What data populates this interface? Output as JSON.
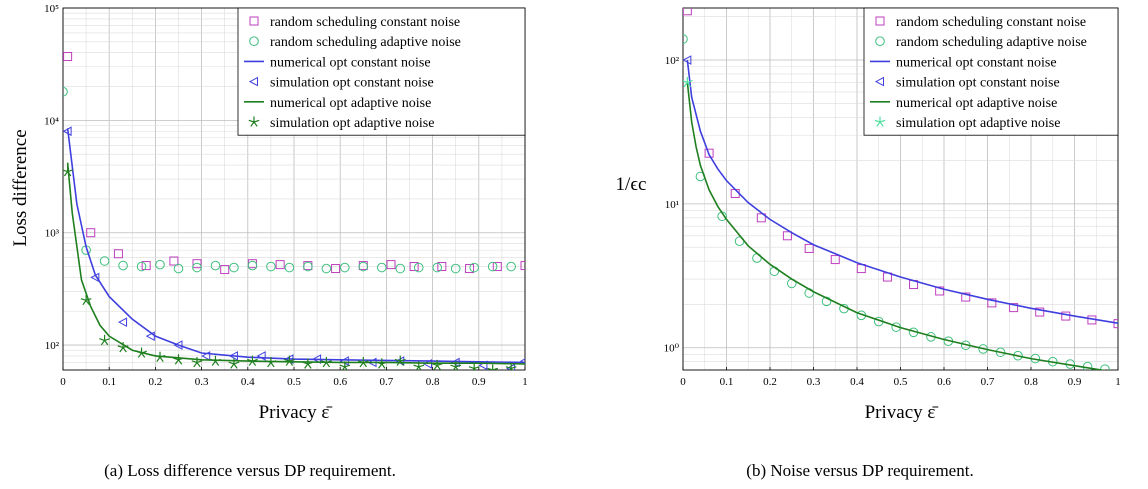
{
  "captions": {
    "a": "(a) Loss difference versus DP requirement.",
    "b": "(b) Noise versus DP requirement."
  },
  "colors": {
    "random_constant": "#bf3fbf",
    "random_adaptive": "#3fbf7f",
    "numerical_constant": "#3f3fdf",
    "simulation_constant": "#3f3fdf",
    "numerical_adaptive": "#1f7f1f",
    "simulation_adaptive": "#1f7f1f",
    "simulation_adaptive_b": "#50e0a0"
  },
  "chart_data": [
    {
      "type": "line",
      "id": "a",
      "xlabel": "Privacy ε̄",
      "ylabel": "Loss difference",
      "xlim": [
        0,
        1
      ],
      "ylim": [
        60,
        100000
      ],
      "yscale": "log",
      "grid": true,
      "legend_position": "top-right",
      "x_ticks": [
        "0",
        "0.1",
        "0.2",
        "0.3",
        "0.4",
        "0.5",
        "0.6",
        "0.7",
        "0.8",
        "0.9",
        "1"
      ],
      "y_ticks": [
        {
          "value": 100,
          "label": "10²"
        },
        {
          "value": 1000,
          "label": "10³"
        },
        {
          "value": 10000,
          "label": "10⁴"
        },
        {
          "value": 100000,
          "label": "10⁵"
        }
      ],
      "series": [
        {
          "name": "random scheduling constant noise",
          "style": "square",
          "color_key": "random_constant",
          "x": [
            0.01,
            0.06,
            0.12,
            0.18,
            0.24,
            0.29,
            0.35,
            0.41,
            0.47,
            0.53,
            0.59,
            0.65,
            0.71,
            0.76,
            0.82,
            0.88,
            0.94,
            1.0
          ],
          "y": [
            37000,
            1000,
            650,
            510,
            560,
            530,
            470,
            530,
            520,
            510,
            480,
            510,
            520,
            500,
            500,
            480,
            500,
            510
          ]
        },
        {
          "name": "random scheduling adaptive noise",
          "style": "circle",
          "color_key": "random_adaptive",
          "x": [
            0.0,
            0.05,
            0.09,
            0.13,
            0.17,
            0.21,
            0.25,
            0.29,
            0.33,
            0.37,
            0.41,
            0.45,
            0.49,
            0.53,
            0.57,
            0.61,
            0.65,
            0.69,
            0.73,
            0.77,
            0.81,
            0.85,
            0.89,
            0.93,
            0.97
          ],
          "y": [
            18000,
            700,
            560,
            510,
            500,
            520,
            480,
            490,
            510,
            490,
            510,
            500,
            490,
            500,
            480,
            490,
            500,
            490,
            480,
            490,
            490,
            480,
            490,
            500,
            500
          ]
        },
        {
          "name": "numerical opt constant noise",
          "style": "line",
          "color_key": "numerical_constant",
          "x": [
            0.01,
            0.03,
            0.05,
            0.07,
            0.1,
            0.15,
            0.2,
            0.25,
            0.3,
            0.4,
            0.5,
            0.6,
            0.7,
            0.8,
            0.9,
            1.0
          ],
          "y": [
            8500,
            1800,
            750,
            420,
            270,
            170,
            120,
            100,
            85,
            78,
            75,
            74,
            73,
            72,
            71,
            70
          ]
        },
        {
          "name": "simulation opt constant noise",
          "style": "triangle",
          "color_key": "simulation_constant",
          "x": [
            0.01,
            0.07,
            0.13,
            0.19,
            0.25,
            0.31,
            0.37,
            0.43,
            0.49,
            0.55,
            0.61,
            0.67,
            0.73,
            0.79,
            0.85,
            0.91,
            0.97,
            1.0
          ],
          "y": [
            8000,
            400,
            160,
            120,
            100,
            80,
            80,
            80,
            75,
            75,
            72,
            70,
            72,
            68,
            70,
            66,
            62,
            72
          ]
        },
        {
          "name": "numerical opt adaptive noise",
          "style": "line",
          "color_key": "numerical_adaptive",
          "x": [
            0.01,
            0.02,
            0.04,
            0.06,
            0.08,
            0.1,
            0.15,
            0.2,
            0.3,
            0.4,
            0.5,
            0.6,
            0.7,
            0.8,
            0.9,
            1.0
          ],
          "y": [
            4200,
            1500,
            380,
            220,
            150,
            120,
            90,
            80,
            74,
            72,
            71,
            70,
            70,
            69,
            69,
            68
          ]
        },
        {
          "name": "simulation opt adaptive noise",
          "style": "star",
          "color_key": "simulation_adaptive",
          "x": [
            0.01,
            0.05,
            0.09,
            0.13,
            0.17,
            0.21,
            0.25,
            0.29,
            0.33,
            0.37,
            0.41,
            0.45,
            0.49,
            0.53,
            0.57,
            0.61,
            0.65,
            0.69,
            0.73,
            0.77,
            0.81,
            0.85,
            0.89,
            0.93,
            0.97
          ],
          "y": [
            3500,
            250,
            110,
            95,
            85,
            78,
            74,
            70,
            72,
            68,
            72,
            70,
            72,
            68,
            70,
            64,
            70,
            68,
            72,
            64,
            66,
            64,
            62,
            60,
            62
          ]
        }
      ]
    },
    {
      "type": "line",
      "id": "b",
      "xlabel": "Privacy ε̄",
      "ylabel": "1/ϵc",
      "xlim": [
        0,
        1
      ],
      "ylim": [
        0.7,
        230
      ],
      "yscale": "log",
      "grid": true,
      "legend_position": "top-right",
      "x_ticks": [
        "0",
        "0.1",
        "0.2",
        "0.3",
        "0.4",
        "0.5",
        "0.6",
        "0.7",
        "0.8",
        "0.9",
        "1"
      ],
      "y_ticks": [
        {
          "value": 1,
          "label": "10⁰"
        },
        {
          "value": 10,
          "label": "10¹"
        },
        {
          "value": 100,
          "label": "10²"
        }
      ],
      "series": [
        {
          "name": "random scheduling constant noise",
          "style": "square",
          "color_key": "random_constant",
          "x": [
            0.01,
            0.06,
            0.12,
            0.18,
            0.24,
            0.29,
            0.35,
            0.41,
            0.47,
            0.53,
            0.59,
            0.65,
            0.71,
            0.76,
            0.82,
            0.88,
            0.94,
            1.0
          ],
          "y": [
            220,
            22.5,
            11.8,
            8.0,
            6.0,
            4.9,
            4.1,
            3.55,
            3.1,
            2.75,
            2.48,
            2.25,
            2.05,
            1.9,
            1.77,
            1.66,
            1.56,
            1.47
          ]
        },
        {
          "name": "random scheduling adaptive noise",
          "style": "circle",
          "color_key": "random_adaptive",
          "x": [
            0.0,
            0.04,
            0.09,
            0.13,
            0.17,
            0.21,
            0.25,
            0.29,
            0.33,
            0.37,
            0.41,
            0.45,
            0.49,
            0.53,
            0.57,
            0.61,
            0.65,
            0.69,
            0.73,
            0.77,
            0.81,
            0.85,
            0.89,
            0.93,
            0.97
          ],
          "y": [
            140,
            15.5,
            8.2,
            5.5,
            4.2,
            3.4,
            2.8,
            2.4,
            2.1,
            1.87,
            1.68,
            1.52,
            1.39,
            1.28,
            1.19,
            1.11,
            1.04,
            0.98,
            0.93,
            0.88,
            0.84,
            0.8,
            0.77,
            0.74,
            0.71
          ]
        },
        {
          "name": "numerical opt constant noise",
          "style": "line",
          "color_key": "numerical_constant",
          "x": [
            0.01,
            0.02,
            0.04,
            0.06,
            0.08,
            0.1,
            0.15,
            0.2,
            0.25,
            0.3,
            0.4,
            0.5,
            0.6,
            0.7,
            0.8,
            0.9,
            1.0
          ],
          "y": [
            100,
            55,
            32,
            22,
            17.5,
            14.5,
            10.2,
            7.8,
            6.3,
            5.2,
            3.9,
            3.1,
            2.55,
            2.17,
            1.88,
            1.66,
            1.48
          ]
        },
        {
          "name": "simulation opt constant noise",
          "style": "triangle",
          "color_key": "simulation_constant",
          "x": [
            0.01
          ],
          "y": [
            100
          ]
        },
        {
          "name": "numerical opt adaptive noise",
          "style": "line",
          "color_key": "numerical_adaptive",
          "x": [
            0.01,
            0.02,
            0.03,
            0.04,
            0.06,
            0.08,
            0.1,
            0.15,
            0.2,
            0.25,
            0.3,
            0.4,
            0.5,
            0.6,
            0.7,
            0.8,
            0.9,
            1.0
          ],
          "y": [
            70,
            37,
            25,
            18.5,
            12.5,
            9.6,
            7.8,
            5.1,
            3.8,
            3.0,
            2.45,
            1.75,
            1.38,
            1.14,
            0.97,
            0.84,
            0.75,
            0.67
          ]
        },
        {
          "name": "simulation opt adaptive noise",
          "style": "star",
          "color_key": "simulation_adaptive_b",
          "x": [
            0.01
          ],
          "y": [
            70
          ]
        }
      ]
    }
  ]
}
